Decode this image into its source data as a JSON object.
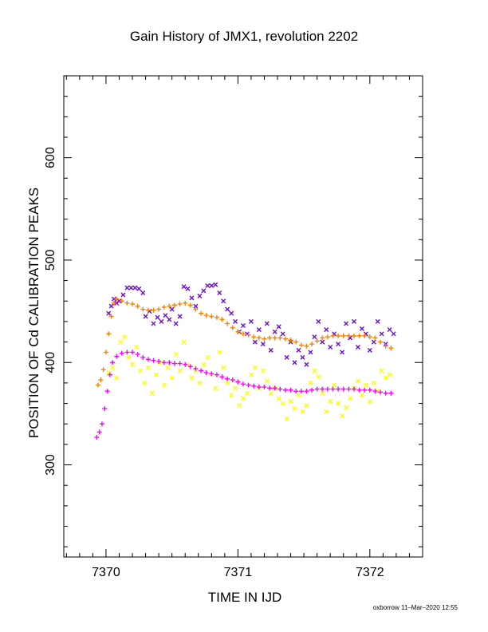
{
  "chart_data": {
    "type": "scatter",
    "title": "Gain History of JMX1, revolution 2202",
    "xlabel": "TIME IN IJD",
    "ylabel": "POSITION OF Cd CALIBRATION PEAKS",
    "xlim": [
      7369.68,
      7372.4
    ],
    "ylim": [
      210,
      680
    ],
    "x_ticks": [
      7370,
      7371,
      7372
    ],
    "y_ticks": [
      300,
      400,
      500,
      600
    ],
    "grid": false,
    "series": [
      {
        "marker": "x",
        "color": "#6a0dd9",
        "points": [
          [
            7370.02,
            448
          ],
          [
            7370.04,
            455
          ],
          [
            7370.06,
            462
          ],
          [
            7370.08,
            458
          ],
          [
            7370.1,
            460
          ],
          [
            7370.13,
            466
          ],
          [
            7370.16,
            473
          ],
          [
            7370.19,
            473
          ],
          [
            7370.22,
            473
          ],
          [
            7370.25,
            472
          ],
          [
            7370.28,
            468
          ],
          [
            7370.3,
            445
          ],
          [
            7370.33,
            450
          ],
          [
            7370.36,
            438
          ],
          [
            7370.39,
            444
          ],
          [
            7370.42,
            440
          ],
          [
            7370.45,
            446
          ],
          [
            7370.48,
            442
          ],
          [
            7370.5,
            452
          ],
          [
            7370.53,
            438
          ],
          [
            7370.56,
            445
          ],
          [
            7370.59,
            474
          ],
          [
            7370.62,
            472
          ],
          [
            7370.65,
            463
          ],
          [
            7370.68,
            455
          ],
          [
            7370.71,
            465
          ],
          [
            7370.74,
            470
          ],
          [
            7370.77,
            475
          ],
          [
            7370.8,
            475
          ],
          [
            7370.83,
            476
          ],
          [
            7370.86,
            468
          ],
          [
            7370.89,
            460
          ],
          [
            7370.92,
            452
          ],
          [
            7370.95,
            448
          ],
          [
            7370.98,
            440
          ],
          [
            7371.01,
            430
          ],
          [
            7371.04,
            436
          ],
          [
            7371.07,
            428
          ],
          [
            7371.1,
            440
          ],
          [
            7371.13,
            420
          ],
          [
            7371.16,
            432
          ],
          [
            7371.19,
            418
          ],
          [
            7371.22,
            438
          ],
          [
            7371.25,
            412
          ],
          [
            7371.28,
            430
          ],
          [
            7371.31,
            435
          ],
          [
            7371.34,
            428
          ],
          [
            7371.37,
            405
          ],
          [
            7371.4,
            420
          ],
          [
            7371.43,
            400
          ],
          [
            7371.46,
            412
          ],
          [
            7371.49,
            405
          ],
          [
            7371.52,
            398
          ],
          [
            7371.55,
            410
          ],
          [
            7371.58,
            425
          ],
          [
            7371.61,
            440
          ],
          [
            7371.64,
            420
          ],
          [
            7371.67,
            432
          ],
          [
            7371.7,
            415
          ],
          [
            7371.73,
            428
          ],
          [
            7371.76,
            418
          ],
          [
            7371.79,
            410
          ],
          [
            7371.82,
            438
          ],
          [
            7371.85,
            424
          ],
          [
            7371.88,
            440
          ],
          [
            7371.91,
            415
          ],
          [
            7371.94,
            433
          ],
          [
            7371.97,
            428
          ],
          [
            7372.0,
            412
          ],
          [
            7372.03,
            420
          ],
          [
            7372.06,
            440
          ],
          [
            7372.09,
            428
          ],
          [
            7372.12,
            418
          ],
          [
            7372.15,
            432
          ],
          [
            7372.18,
            428
          ]
        ]
      },
      {
        "marker": "x",
        "color": "#ffff00",
        "points": [
          [
            7370.02,
            390
          ],
          [
            7370.05,
            395
          ],
          [
            7370.08,
            385
          ],
          [
            7370.11,
            420
          ],
          [
            7370.14,
            425
          ],
          [
            7370.17,
            405
          ],
          [
            7370.2,
            398
          ],
          [
            7370.23,
            415
          ],
          [
            7370.26,
            392
          ],
          [
            7370.29,
            380
          ],
          [
            7370.32,
            395
          ],
          [
            7370.35,
            370
          ],
          [
            7370.38,
            388
          ],
          [
            7370.41,
            400
          ],
          [
            7370.44,
            378
          ],
          [
            7370.47,
            395
          ],
          [
            7370.5,
            385
          ],
          [
            7370.53,
            408
          ],
          [
            7370.56,
            392
          ],
          [
            7370.59,
            420
          ],
          [
            7370.62,
            398
          ],
          [
            7370.65,
            385
          ],
          [
            7370.68,
            392
          ],
          [
            7370.71,
            380
          ],
          [
            7370.74,
            398
          ],
          [
            7370.77,
            405
          ],
          [
            7370.8,
            388
          ],
          [
            7370.83,
            375
          ],
          [
            7370.86,
            410
          ],
          [
            7370.89,
            395
          ],
          [
            7370.92,
            380
          ],
          [
            7370.95,
            368
          ],
          [
            7370.98,
            375
          ],
          [
            7371.01,
            358
          ],
          [
            7371.04,
            365
          ],
          [
            7371.07,
            370
          ],
          [
            7371.1,
            388
          ],
          [
            7371.13,
            395
          ],
          [
            7371.16,
            375
          ],
          [
            7371.19,
            392
          ],
          [
            7371.22,
            382
          ],
          [
            7371.25,
            370
          ],
          [
            7371.28,
            375
          ],
          [
            7371.31,
            365
          ],
          [
            7371.34,
            360
          ],
          [
            7371.37,
            345
          ],
          [
            7371.4,
            362
          ],
          [
            7371.43,
            355
          ],
          [
            7371.46,
            368
          ],
          [
            7371.49,
            352
          ],
          [
            7371.52,
            358
          ],
          [
            7371.55,
            380
          ],
          [
            7371.58,
            392
          ],
          [
            7371.61,
            386
          ],
          [
            7371.64,
            370
          ],
          [
            7371.67,
            352
          ],
          [
            7371.7,
            362
          ],
          [
            7371.73,
            378
          ],
          [
            7371.76,
            360
          ],
          [
            7371.79,
            348
          ],
          [
            7371.82,
            356
          ],
          [
            7371.85,
            365
          ],
          [
            7371.88,
            375
          ],
          [
            7371.91,
            382
          ],
          [
            7371.94,
            368
          ],
          [
            7371.97,
            378
          ],
          [
            7372.0,
            362
          ],
          [
            7372.03,
            380
          ],
          [
            7372.06,
            372
          ],
          [
            7372.09,
            392
          ],
          [
            7372.12,
            385
          ],
          [
            7372.15,
            388
          ]
        ]
      },
      {
        "marker": "+",
        "color": "#ff8000",
        "points": [
          [
            7369.94,
            378
          ],
          [
            7369.96,
            383
          ],
          [
            7369.98,
            393
          ],
          [
            7370.0,
            410
          ],
          [
            7370.02,
            428
          ],
          [
            7370.04,
            445
          ],
          [
            7370.06,
            458
          ],
          [
            7370.08,
            462
          ],
          [
            7370.12,
            460
          ],
          [
            7370.16,
            458
          ],
          [
            7370.2,
            457
          ],
          [
            7370.24,
            455
          ],
          [
            7370.28,
            452
          ],
          [
            7370.32,
            451
          ],
          [
            7370.36,
            451
          ],
          [
            7370.4,
            452
          ],
          [
            7370.44,
            454
          ],
          [
            7370.48,
            455
          ],
          [
            7370.52,
            456
          ],
          [
            7370.56,
            457
          ],
          [
            7370.6,
            458
          ],
          [
            7370.64,
            456
          ],
          [
            7370.68,
            452
          ],
          [
            7370.72,
            448
          ],
          [
            7370.76,
            446
          ],
          [
            7370.8,
            445
          ],
          [
            7370.84,
            444
          ],
          [
            7370.88,
            442
          ],
          [
            7370.92,
            438
          ],
          [
            7370.96,
            434
          ],
          [
            7371.0,
            430
          ],
          [
            7371.04,
            428
          ],
          [
            7371.08,
            427
          ],
          [
            7371.12,
            425
          ],
          [
            7371.16,
            424
          ],
          [
            7371.2,
            423
          ],
          [
            7371.24,
            424
          ],
          [
            7371.28,
            424
          ],
          [
            7371.32,
            424
          ],
          [
            7371.36,
            423
          ],
          [
            7371.4,
            422
          ],
          [
            7371.44,
            420
          ],
          [
            7371.48,
            417
          ],
          [
            7371.52,
            416
          ],
          [
            7371.56,
            418
          ],
          [
            7371.6,
            421
          ],
          [
            7371.64,
            424
          ],
          [
            7371.68,
            425
          ],
          [
            7371.72,
            426
          ],
          [
            7371.76,
            426
          ],
          [
            7371.8,
            426
          ],
          [
            7371.84,
            426
          ],
          [
            7371.88,
            426
          ],
          [
            7371.92,
            426
          ],
          [
            7371.96,
            426
          ],
          [
            7372.0,
            425
          ],
          [
            7372.04,
            424
          ],
          [
            7372.08,
            420
          ],
          [
            7372.12,
            416
          ],
          [
            7372.16,
            414
          ]
        ]
      },
      {
        "marker": "+",
        "color": "#ff00ff",
        "points": [
          [
            7369.93,
            327
          ],
          [
            7369.95,
            332
          ],
          [
            7369.97,
            340
          ],
          [
            7369.99,
            355
          ],
          [
            7370.01,
            372
          ],
          [
            7370.03,
            388
          ],
          [
            7370.05,
            400
          ],
          [
            7370.08,
            406
          ],
          [
            7370.12,
            409
          ],
          [
            7370.16,
            410
          ],
          [
            7370.2,
            410
          ],
          [
            7370.24,
            408
          ],
          [
            7370.28,
            405
          ],
          [
            7370.32,
            403
          ],
          [
            7370.36,
            402
          ],
          [
            7370.4,
            401
          ],
          [
            7370.44,
            400
          ],
          [
            7370.48,
            400
          ],
          [
            7370.52,
            399
          ],
          [
            7370.56,
            399
          ],
          [
            7370.6,
            398
          ],
          [
            7370.64,
            396
          ],
          [
            7370.68,
            394
          ],
          [
            7370.72,
            392
          ],
          [
            7370.76,
            390
          ],
          [
            7370.8,
            389
          ],
          [
            7370.84,
            388
          ],
          [
            7370.88,
            386
          ],
          [
            7370.92,
            384
          ],
          [
            7370.96,
            383
          ],
          [
            7371.0,
            381
          ],
          [
            7371.04,
            379
          ],
          [
            7371.08,
            378
          ],
          [
            7371.12,
            377
          ],
          [
            7371.16,
            376
          ],
          [
            7371.2,
            376
          ],
          [
            7371.24,
            375
          ],
          [
            7371.28,
            375
          ],
          [
            7371.32,
            374
          ],
          [
            7371.36,
            373
          ],
          [
            7371.4,
            373
          ],
          [
            7371.44,
            372
          ],
          [
            7371.48,
            372
          ],
          [
            7371.52,
            372
          ],
          [
            7371.56,
            373
          ],
          [
            7371.6,
            374
          ],
          [
            7371.64,
            374
          ],
          [
            7371.68,
            374
          ],
          [
            7371.72,
            374
          ],
          [
            7371.76,
            374
          ],
          [
            7371.8,
            374
          ],
          [
            7371.84,
            374
          ],
          [
            7371.88,
            374
          ],
          [
            7371.92,
            373
          ],
          [
            7371.96,
            373
          ],
          [
            7372.0,
            373
          ],
          [
            7372.04,
            372
          ],
          [
            7372.08,
            371
          ],
          [
            7372.12,
            370
          ],
          [
            7372.16,
            370
          ]
        ]
      }
    ]
  },
  "footer": "oxborrow 11–Mar–2020 12:55"
}
